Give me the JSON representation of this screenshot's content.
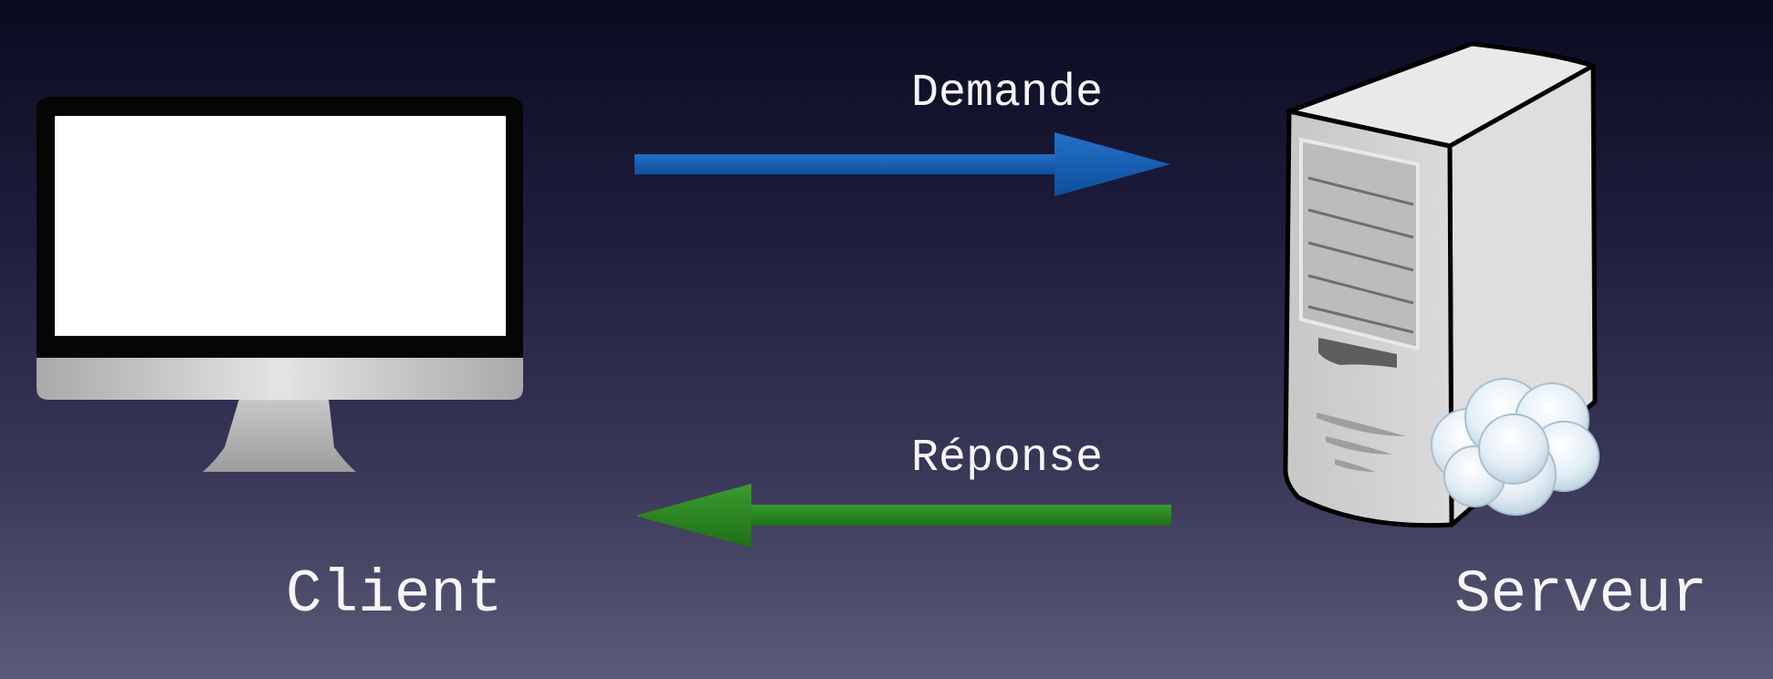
{
  "labels": {
    "request": "Demande",
    "response": "Réponse",
    "client": "Client",
    "server": "Serveur"
  },
  "colors": {
    "request_arrow": "#1a5fb4",
    "response_arrow": "#2e8b22",
    "text": "#f6f6f8"
  },
  "icons": {
    "client": "desktop-monitor-icon",
    "server": "tower-server-icon",
    "cloud": "cloud-icon"
  }
}
